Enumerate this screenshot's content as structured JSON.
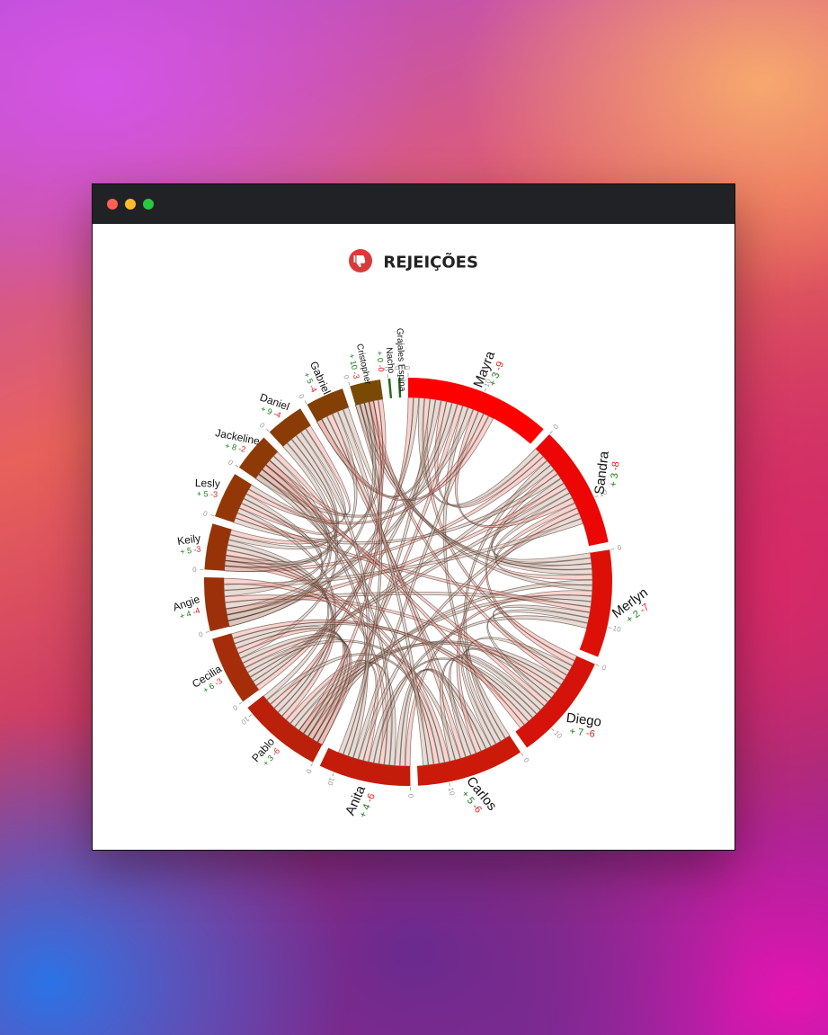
{
  "window": {
    "controls": [
      "close",
      "minimize",
      "maximize"
    ]
  },
  "header": {
    "title": "REJEIÇÕES",
    "icon": "thumbs-down-icon"
  },
  "chart_data": {
    "type": "chord",
    "title": "REJEIÇÕES",
    "tick_labels": [
      "0",
      "10"
    ],
    "colors": {
      "positive": "#1a7a1a",
      "negative": "#e02020",
      "ribbon_fill": "#e8cfc4",
      "ribbon_stroke": "#6a4a3a"
    },
    "groups": [
      {
        "name": "Mayra",
        "pos": "+ 3",
        "neg": "-9",
        "value": 19,
        "color": "#ff0000"
      },
      {
        "name": "Sandra",
        "pos": "+ 3",
        "neg": "-8",
        "value": 16,
        "color": "#ec0606"
      },
      {
        "name": "Merlyn",
        "pos": "+ 2",
        "neg": "-7",
        "value": 14,
        "color": "#dd1008"
      },
      {
        "name": "Diego",
        "pos": "+ 7",
        "neg": "-6",
        "value": 14,
        "color": "#d5130a"
      },
      {
        "name": "Carlos",
        "pos": "+ 5",
        "neg": "-6",
        "value": 14,
        "color": "#cc1a0a"
      },
      {
        "name": "Anita",
        "pos": "+ 4",
        "neg": "-6",
        "value": 12,
        "color": "#c41c0a"
      },
      {
        "name": "Pablo",
        "pos": "+ 3",
        "neg": "-6",
        "value": 11,
        "color": "#bb200a"
      },
      {
        "name": "Cecilia",
        "pos": "+ 6",
        "neg": "-3",
        "value": 9,
        "color": "#a62d0a"
      },
      {
        "name": "Angie",
        "pos": "+ 4",
        "neg": "-4",
        "value": 7,
        "color": "#9b300a"
      },
      {
        "name": "Keily",
        "pos": "+ 5",
        "neg": "-3",
        "value": 6,
        "color": "#973308"
      },
      {
        "name": "Lesly",
        "pos": "+ 5",
        "neg": "-3",
        "value": 6,
        "color": "#933707"
      },
      {
        "name": "Jackeline",
        "pos": "+ 8",
        "neg": "-2",
        "value": 5,
        "color": "#8e3a06"
      },
      {
        "name": "Daniel",
        "pos": "+ 9",
        "neg": "-4",
        "value": 5,
        "color": "#893c05"
      },
      {
        "name": "Gabriel",
        "pos": "+ 5",
        "neg": "-4",
        "value": 5,
        "color": "#833f04"
      },
      {
        "name": "Cristopher",
        "pos": "+ 10",
        "neg": "-3",
        "value": 4,
        "color": "#7a4a04"
      },
      {
        "name": "Nacho",
        "pos": "+ 0",
        "neg": "-0",
        "value": 0.3,
        "color": "#1f6b1f"
      },
      {
        "name": "Grajales Espina",
        "pos": "",
        "neg": "",
        "value": 0.3,
        "color": "#1f6b1f"
      }
    ]
  }
}
